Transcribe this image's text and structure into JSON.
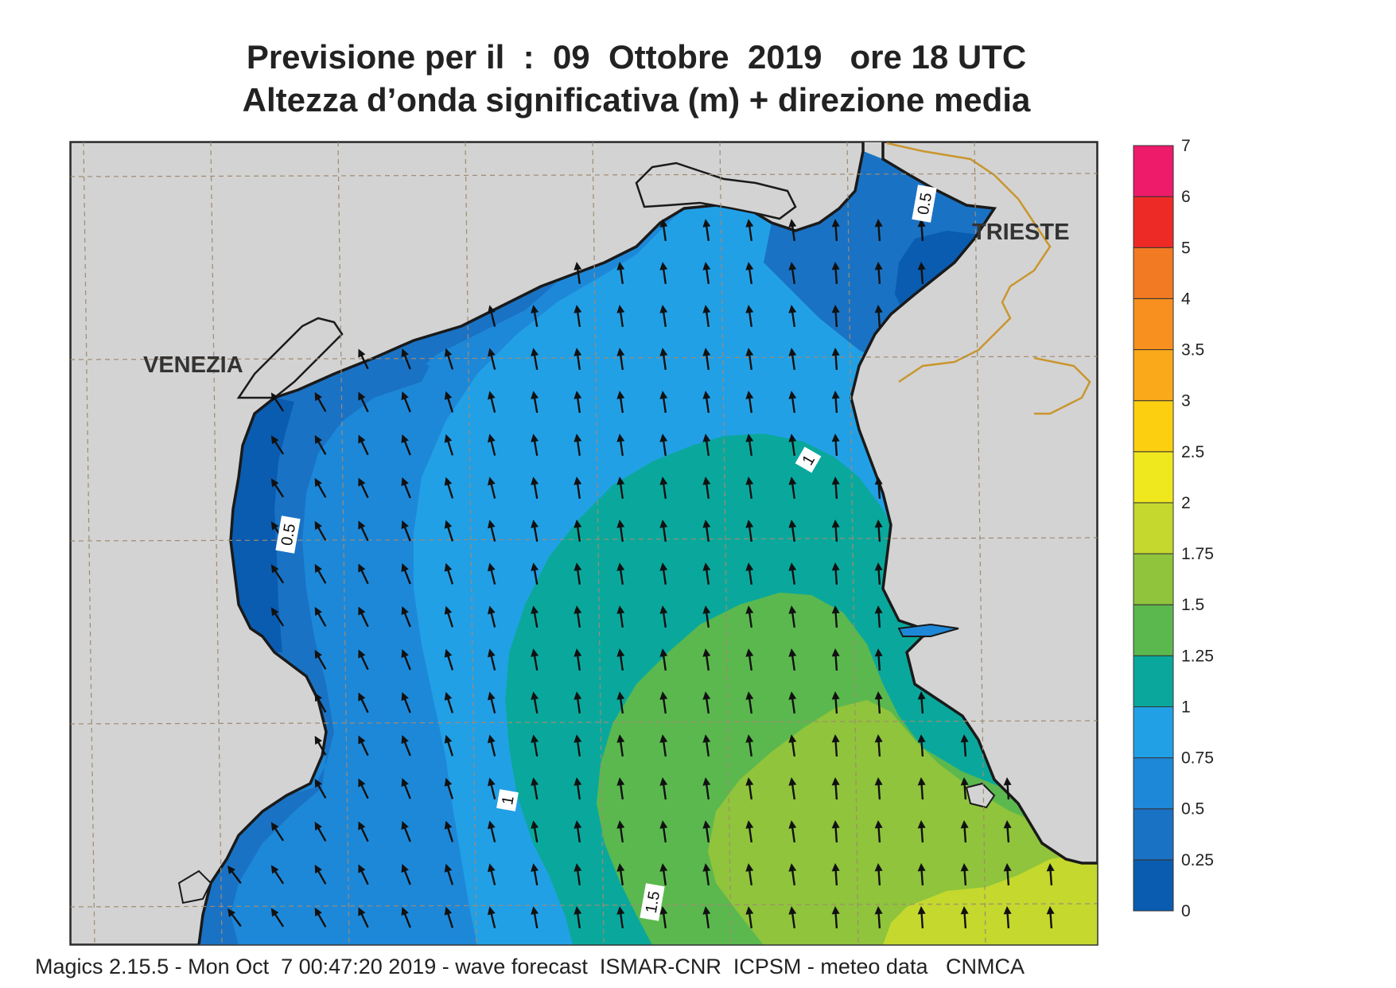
{
  "header": {
    "title_line1": "Previsione per il  :  09  Ottobre  2019   ore 18 UTC",
    "title_line2": "Altezza d’onda significativa (m) + direzione media"
  },
  "map": {
    "place_labels": [
      {
        "name": "VENEZIA"
      },
      {
        "name": "TRIESTE"
      }
    ],
    "contour_labels": [
      "0.5",
      "0.5",
      "1",
      "1",
      "1.5"
    ],
    "arrow_direction": "north-northwest",
    "colors": {
      "land": "#d3d3d3",
      "coast": "#1a1a1a",
      "border": "#c9962e",
      "grid": "#a08a72"
    }
  },
  "colorbar": {
    "levels": [
      "0",
      "0.25",
      "0.5",
      "0.75",
      "1",
      "1.25",
      "1.5",
      "1.75",
      "2",
      "2.5",
      "3",
      "3.5",
      "4",
      "5",
      "6",
      "7"
    ],
    "colors": [
      "#0a5cb0",
      "#1a72c4",
      "#1e88d8",
      "#22a0e6",
      "#0aa89c",
      "#5bb84e",
      "#8fc43c",
      "#c4d82e",
      "#f0e81e",
      "#fcd010",
      "#f9a91a",
      "#f7901e",
      "#f27a22",
      "#ee2a26",
      "#ee1a6a"
    ]
  },
  "footer": {
    "text": "Magics 2.15.5 - Mon Oct  7 00:47:20 2019 - wave forecast  ISMAR-CNR  ICPSM - meteo data   CNMCA"
  }
}
